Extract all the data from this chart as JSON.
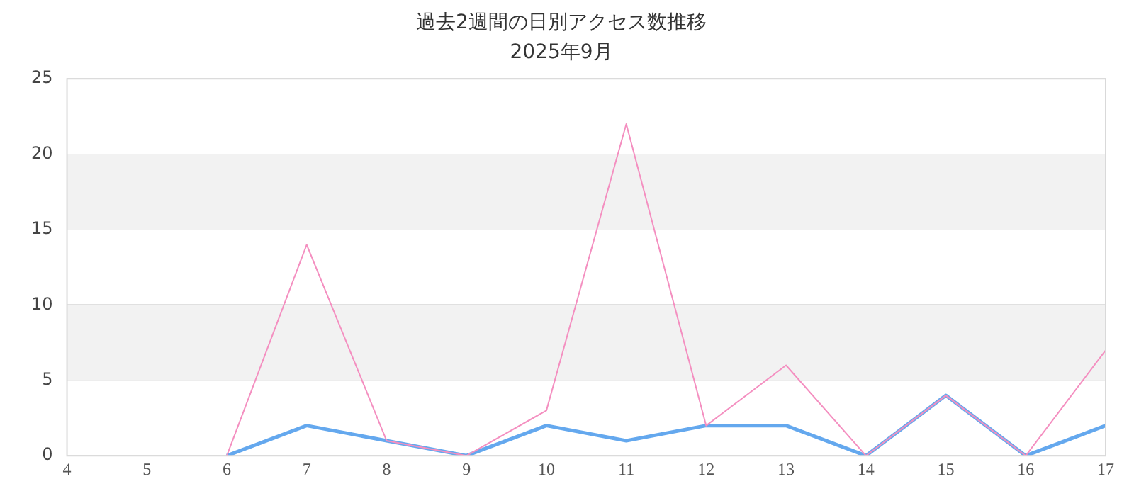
{
  "chart_data": {
    "type": "line",
    "title": "過去2週間の日別アクセス数推移",
    "subtitle": "2025年9月",
    "xlim": [
      4,
      17
    ],
    "xticks": [
      4,
      5,
      6,
      7,
      8,
      9,
      10,
      11,
      12,
      13,
      14,
      15,
      16,
      17
    ],
    "ylim": [
      0,
      25
    ],
    "yticks": [
      0,
      5,
      10,
      15,
      20,
      25
    ],
    "grid": "y",
    "legend": false,
    "marker": "none",
    "line_style": "solid",
    "bands": [
      {
        "axis": "y",
        "from": 5,
        "to": 10,
        "color": "#f2f2f2"
      },
      {
        "axis": "y",
        "from": 15,
        "to": 20,
        "color": "#f2f2f2"
      }
    ],
    "series": [
      {
        "color": "#f48fc0",
        "x": [
          6,
          7,
          8,
          9,
          10,
          11,
          12,
          13,
          14,
          15,
          16,
          17
        ],
        "values": [
          0,
          14,
          1,
          0,
          3,
          22,
          2,
          6,
          0,
          4,
          0,
          7
        ]
      },
      {
        "color": "#64a8ee",
        "x": [
          6,
          7,
          8,
          9,
          10,
          11,
          12,
          13,
          14,
          15,
          16,
          17
        ],
        "values": [
          0,
          2,
          1,
          0,
          2,
          1,
          2,
          2,
          0,
          4,
          0,
          2
        ]
      }
    ]
  }
}
